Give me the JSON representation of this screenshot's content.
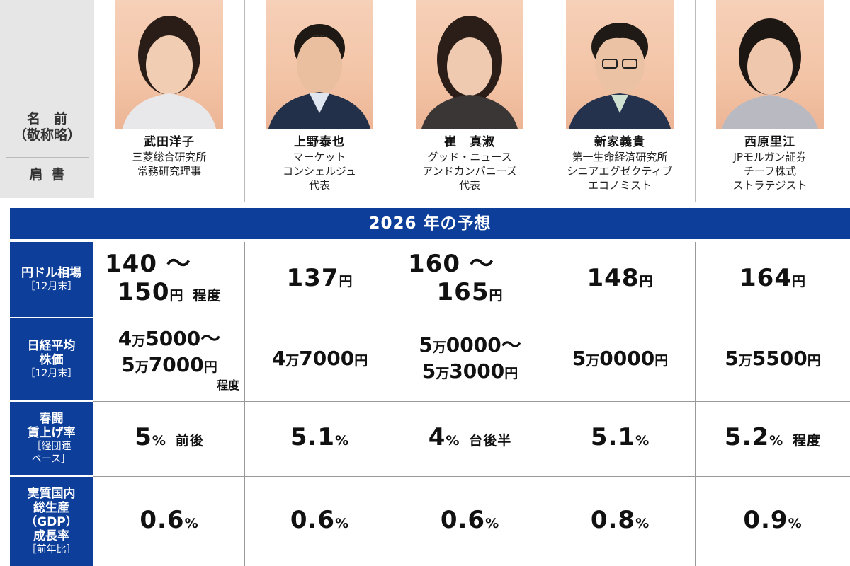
{
  "labels": {
    "name": "名　前\n（敬称略）",
    "name_1": "名　前",
    "name_2": "（敬称略）",
    "title": "肩書"
  },
  "people": [
    {
      "name": "武田洋子",
      "title_lines": [
        "三菱総合研究所",
        "常務研究理事"
      ]
    },
    {
      "name": "上野泰也",
      "title_lines": [
        "マーケット",
        "コンシェルジュ",
        "代表"
      ]
    },
    {
      "name": "崔　真淑",
      "title_lines": [
        "グッド・ニュース",
        "アンドカンパニーズ",
        "代表"
      ]
    },
    {
      "name": "新家義貴",
      "title_lines": [
        "第一生命経済研究所",
        "シニアエグゼクティブ",
        "エコノミスト"
      ]
    },
    {
      "name": "西原里江",
      "title_lines": [
        "JPモルガン証券",
        "チーフ株式",
        "ストラテジスト"
      ]
    }
  ],
  "band": {
    "title": "2026 年の予想"
  },
  "rows": [
    {
      "label_lines": [
        "円ドル相場"
      ],
      "sub": "［12月末］"
    },
    {
      "label_lines": [
        "日経平均",
        "株価"
      ],
      "sub": "［12月末］"
    },
    {
      "label_lines": [
        "春闘",
        "賃上げ率"
      ],
      "sub_lines": [
        "［経団連",
        "ベース］"
      ]
    },
    {
      "label_lines": [
        "実質国内",
        "総生産",
        "（GDP）",
        "成長率"
      ],
      "sub": "［前年比］"
    }
  ],
  "fx": [
    {
      "l1": "140 ～",
      "l2n": "150",
      "unit": "円",
      "note": "程度"
    },
    {
      "n": "137",
      "unit": "円"
    },
    {
      "l1": "160 ～",
      "l2n": "165",
      "unit": "円"
    },
    {
      "n": "148",
      "unit": "円"
    },
    {
      "n": "164",
      "unit": "円"
    }
  ],
  "nikkei": [
    {
      "a_man": "4",
      "a_num": "5000",
      "a_suffix": "～",
      "b_man": "5",
      "b_num": "7000",
      "b_unit": "円",
      "note": "程度"
    },
    {
      "man": "4",
      "num": "7000",
      "unit": "円"
    },
    {
      "a_man": "5",
      "a_num": "0000",
      "a_suffix": "～",
      "b_man": "5",
      "b_num": "3000",
      "b_unit": "円"
    },
    {
      "man": "5",
      "num": "0000",
      "unit": "円"
    },
    {
      "man": "5",
      "num": "5500",
      "unit": "円"
    }
  ],
  "man_char": "万",
  "wage": [
    {
      "n": "5",
      "unit": "%",
      "note": "前後"
    },
    {
      "n": "5.1",
      "unit": "%"
    },
    {
      "n": "4",
      "unit": "%",
      "note": "台後半"
    },
    {
      "n": "5.1",
      "unit": "%"
    },
    {
      "n": "5.2",
      "unit": "%",
      "note": "程度"
    }
  ],
  "gdp": [
    {
      "n": "0.6",
      "unit": "%"
    },
    {
      "n": "0.6",
      "unit": "%"
    },
    {
      "n": "0.6",
      "unit": "%"
    },
    {
      "n": "0.8",
      "unit": "%"
    },
    {
      "n": "0.9",
      "unit": "%"
    }
  ],
  "colors": {
    "band": "#0d3f9a",
    "photo_bg": "#f3c4a6",
    "label_bg": "#e6e6e6"
  }
}
